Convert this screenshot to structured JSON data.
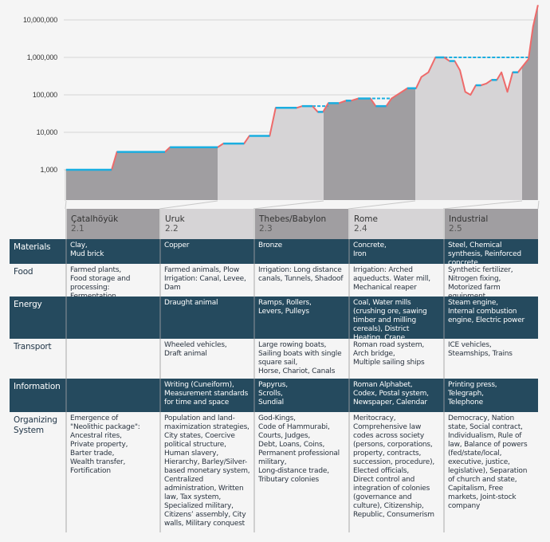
{
  "chart_data": {
    "type": "area",
    "yscale": "log",
    "ylim": [
      150,
      25000000
    ],
    "yticks": [
      1000,
      10000,
      100000,
      1000000,
      10000000
    ],
    "ytick_labels": [
      "1,000",
      "10,000",
      "100,000",
      "1,000,000",
      "10,000,000"
    ],
    "grid": true,
    "series": [
      {
        "values": [
          1000,
          1000,
          3000,
          3000,
          4000,
          4000,
          5000,
          5000,
          8000,
          8000,
          45000,
          45000,
          50000,
          50000,
          35000,
          35000,
          60000,
          60000,
          70000,
          70000,
          80000,
          80000,
          50000,
          50000,
          80000,
          150000,
          150000,
          300000,
          400000,
          1000000,
          1000000,
          800000,
          800000,
          450000,
          120000,
          100000,
          180000,
          180000,
          200000,
          250000,
          250000,
          400000,
          120000,
          400000,
          400000,
          600000,
          900000,
          6600000,
          25000000
        ]
      }
    ],
    "reference_levels": [
      50000,
      80000,
      1000000
    ],
    "colors": {
      "line": "#ee6a6a",
      "plateau": "#1aaee0",
      "dashed": "#1aaee0",
      "area_dark": "#a09ea1",
      "area_light": "#d6d4d6",
      "table_dark": "#254a5e"
    }
  },
  "table": {
    "columns": [
      {
        "name": "Çatalhöyük",
        "code": "2.1"
      },
      {
        "name": "Uruk",
        "code": "2.2"
      },
      {
        "name": "Thebes/Babylon",
        "code": "2.3"
      },
      {
        "name": "Rome",
        "code": "2.4"
      },
      {
        "name": "Industrial",
        "code": "2.5"
      }
    ],
    "rows": [
      {
        "label": "Materials",
        "cells": [
          "Clay,\nMud brick",
          "Copper",
          "Bronze",
          "Concrete,\nIron",
          "Steel, Chemical synthesis, Reinforced concrete"
        ]
      },
      {
        "label": "Food",
        "cells": [
          "Farmed plants,\nFood storage and processing: Fermentation",
          "Farmed animals, Plow Irrigation: Canal, Levee, Dam",
          "Irrigation: Long distance canals, Tunnels, Shadoof",
          "Irrigation: Arched aqueducts. Water mill, Mechanical reaper",
          "Synthetic fertilizer, Nitrogen fixing, Motorized farm equipment"
        ]
      },
      {
        "label": "Energy",
        "cells": [
          "",
          "Draught animal",
          "Ramps, Rollers,\nLevers, Pulleys",
          "Coal, Water mills (crushing ore, sawing timber and milling cereals), District Heating, Crane",
          "Steam engine,\nInternal combustion engine, Electric power"
        ]
      },
      {
        "label": "Transport",
        "cells": [
          "",
          "Wheeled vehicles,\nDraft animal",
          "Large rowing boats,\nSailing boats with single square sail,\nHorse, Chariot, Canals",
          "Roman road system,\nArch bridge,\nMultiple sailing ships",
          "ICE vehicles,\nSteamships, Trains"
        ]
      },
      {
        "label": "Information",
        "cells": [
          "",
          "Writing (Cuneiform), Measurement standards for time and space",
          "Papyrus,\nScrolls,\nSundial",
          "Roman Alphabet,\nCodex, Postal system, Newspaper, Calendar",
          "Printing press,\nTelegraph,\nTelephone"
        ]
      },
      {
        "label": "Organizing\nSystem",
        "cells": [
          "Emergence of\n\"Neolithic package\":\nAncestral rites,\nPrivate property,\nBarter trade,\nWealth transfer,\nFortification",
          "Population and land-maximization strategies, City states, Coercive political structure, Human slavery, Hierarchy, Barley/Silver-based monetary system, Centralized administration, Written law, Tax system, Specialized military, Citizens’ assembly, City walls, Military conquest",
          "God-Kings,\nCode of Hammurabi,\nCourts, Judges,\nDebt, Loans, Coins,\nPermanent professional military,\nLong-distance trade,\nTributary colonies",
          "Meritocracy,\nComprehensive law codes across society (persons, corporations, property, contracts, succession, procedure), Elected officials,\nDirect control and integration of colonies (governance and culture), Citizenship, Republic, Consumerism",
          "Democracy, Nation state, Social contract, Individualism, Rule of law, Balance of powers (fed/state/local, executive, justice, legislative), Separation of church and state, Capitalism, Free markets, Joint-stock company"
        ]
      }
    ]
  }
}
